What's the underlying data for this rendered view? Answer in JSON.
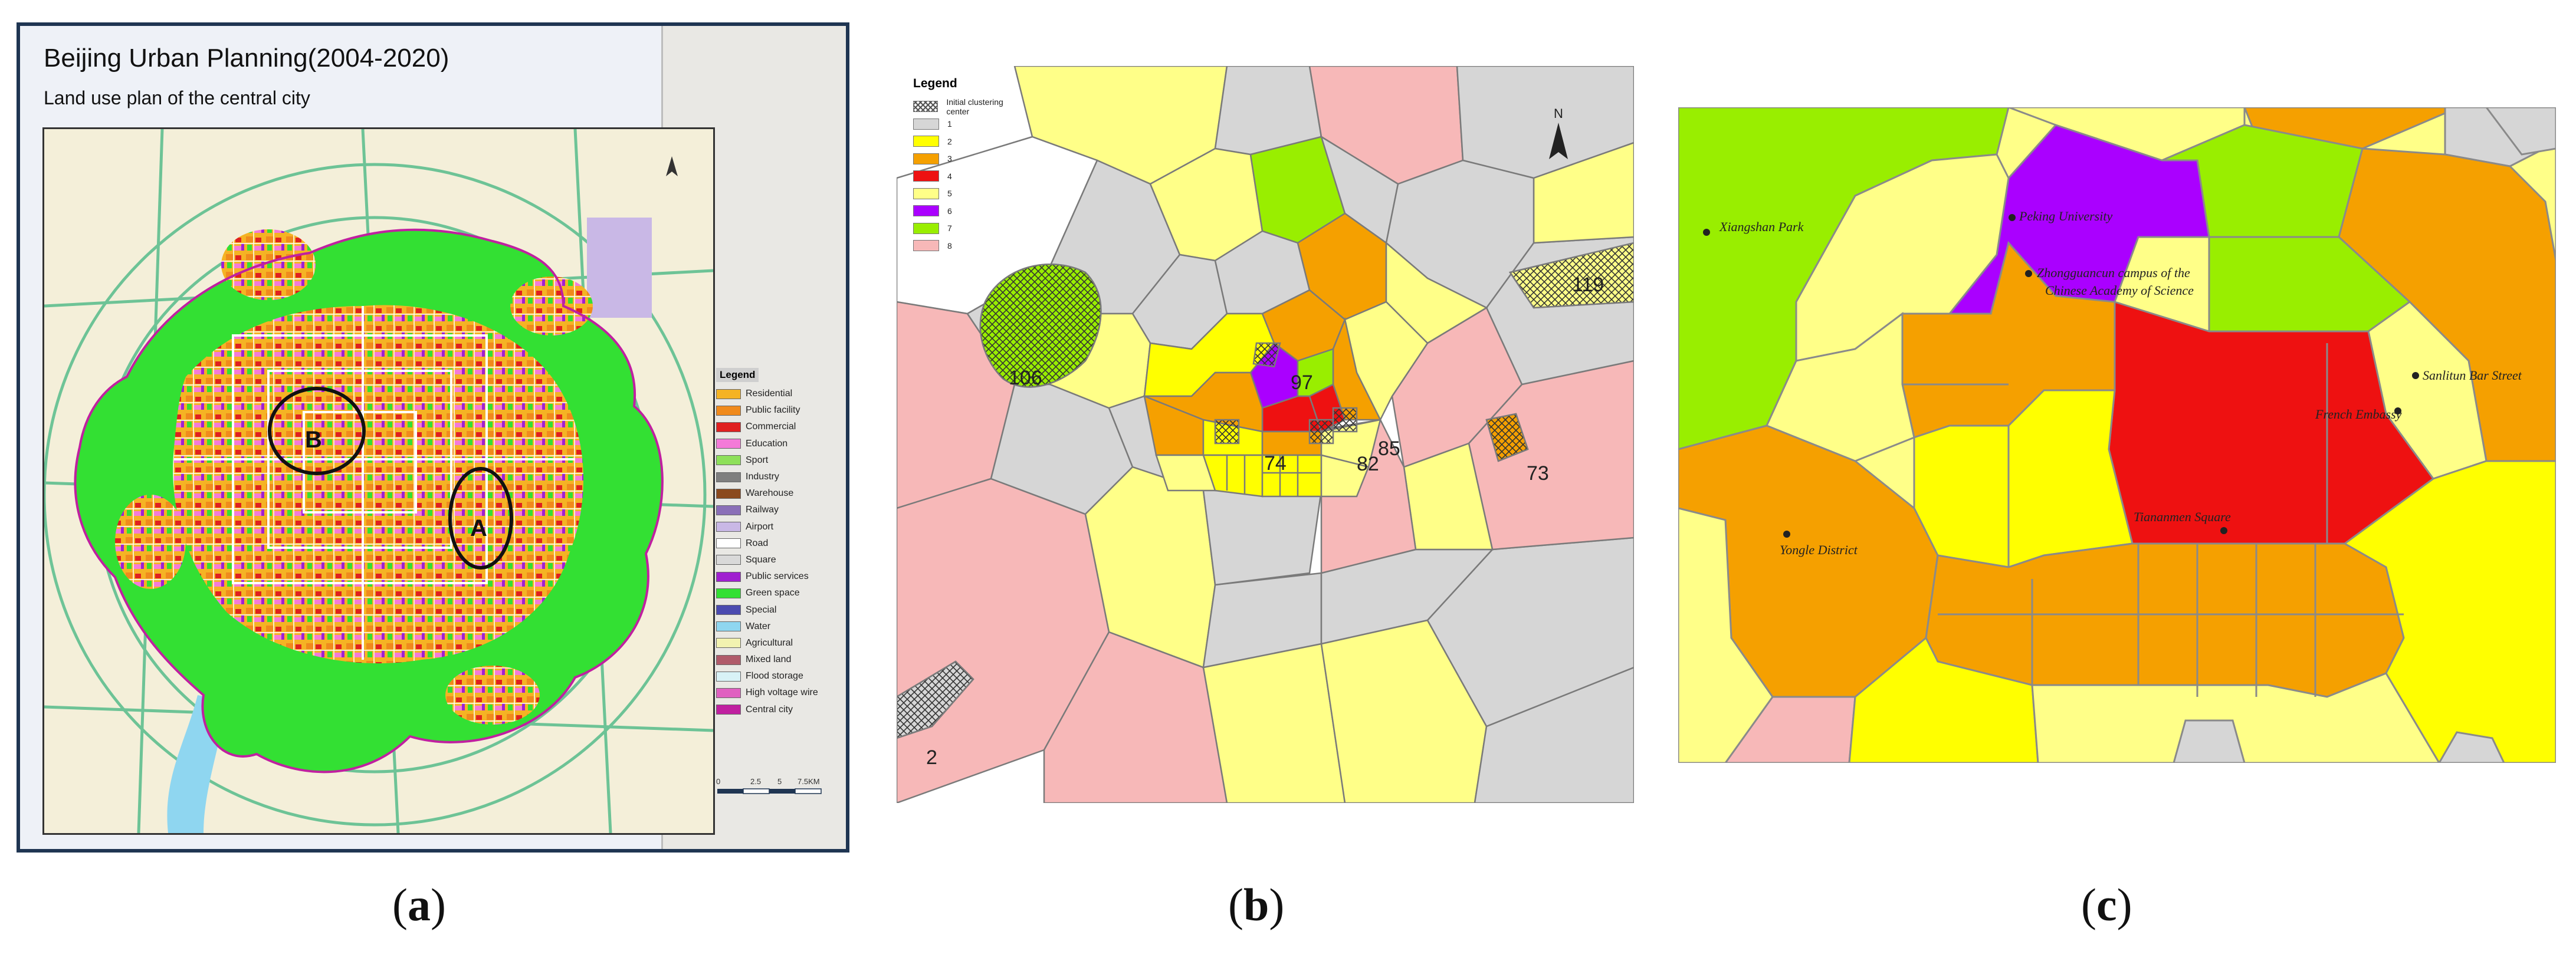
{
  "panel_a": {
    "title": "Beijing Urban Planning(2004-2020)",
    "subtitle": "Land use plan of the central city",
    "marker_a": "A",
    "marker_b": "B",
    "legend_title": "Legend",
    "legend": [
      {
        "label": "Residential",
        "color": "#f5b324"
      },
      {
        "label": "Public facility",
        "color": "#f08a1c"
      },
      {
        "label": "Commercial",
        "color": "#e02020"
      },
      {
        "label": "Education",
        "color": "#f47ad8"
      },
      {
        "label": "Sport",
        "color": "#8ee05a"
      },
      {
        "label": "Industry",
        "color": "#7f7f7f"
      },
      {
        "label": "Warehouse",
        "color": "#8b4a1e"
      },
      {
        "label": "Railway",
        "color": "#8a6fb8"
      },
      {
        "label": "Airport",
        "color": "#c9b8e6"
      },
      {
        "label": "Road",
        "color": "#ffffff"
      },
      {
        "label": "Square",
        "color": "#d9d9d9"
      },
      {
        "label": "Public services",
        "color": "#a020d0"
      },
      {
        "label": "Green space",
        "color": "#33e033"
      },
      {
        "label": "Special",
        "color": "#4a4ab0"
      },
      {
        "label": "Water",
        "color": "#8fd6f0"
      },
      {
        "label": "Agricultural",
        "color": "#f2f2b0"
      },
      {
        "label": "Mixed land",
        "color": "#b05a6a"
      },
      {
        "label": "Flood storage",
        "color": "#d8f2f6"
      },
      {
        "label": "High voltage wire",
        "color": "#e060c0"
      },
      {
        "label": "Central city",
        "color": "#c020a0"
      }
    ],
    "scale_labels": [
      "0",
      "2.5",
      "5",
      "7.5KM"
    ]
  },
  "panel_b": {
    "legend_title": "Legend",
    "legend": [
      {
        "label": "Initial clustering center",
        "color": "hatch"
      },
      {
        "label": "1",
        "color": "#d6d6d6"
      },
      {
        "label": "2",
        "color": "#ffff00"
      },
      {
        "label": "3",
        "color": "#f5a000"
      },
      {
        "label": "4",
        "color": "#ee1111"
      },
      {
        "label": "5",
        "color": "#ffff88"
      },
      {
        "label": "6",
        "color": "#aa00ff"
      },
      {
        "label": "7",
        "color": "#99ee00"
      },
      {
        "label": "8",
        "color": "#f7b8b8"
      }
    ],
    "north_label": "N",
    "center_labels": [
      "106",
      "97",
      "74",
      "82",
      "85",
      "119",
      "73",
      "2"
    ]
  },
  "panel_c": {
    "places": [
      "Xiangshan Park",
      "Peking University",
      "Zhongguancun campus of the",
      "Chinese Academy of Science",
      "Sanlitun Bar Street",
      "French Embassy",
      "Tiananmen Square",
      "Yongle District"
    ]
  },
  "captions": {
    "a": "a",
    "b": "b",
    "c": "c"
  }
}
